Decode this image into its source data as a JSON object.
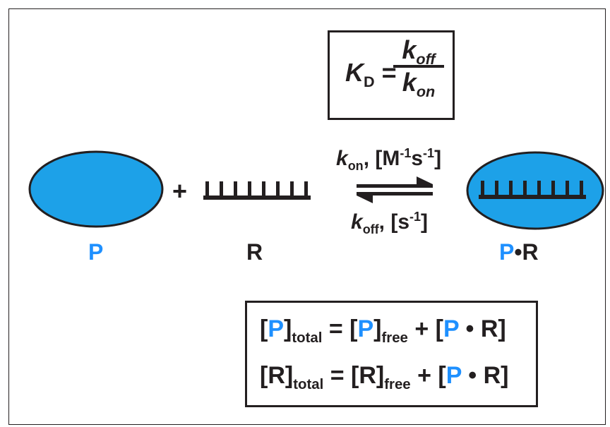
{
  "kd": {
    "k_symbol": "K",
    "k_sub": "D",
    "equals": "=",
    "num_k": "k",
    "num_sub": "off",
    "den_k": "k",
    "den_sub": "on"
  },
  "reaction": {
    "plus": "+",
    "protein_label": "P",
    "rna_label": "R",
    "complex_p": "P",
    "complex_dot": "•",
    "complex_r": "R",
    "forward_k": "k",
    "forward_sub": "on",
    "forward_units_pre": ", [M",
    "forward_sup1": "-1",
    "forward_units_mid": "s",
    "forward_sup2": "-1",
    "forward_units_post": "]",
    "reverse_k": "k",
    "reverse_sub": "off",
    "reverse_units_pre": ", [s",
    "reverse_sup": "-1",
    "reverse_units_post": "]"
  },
  "equations": {
    "line1": {
      "open": "[",
      "sym": "P",
      "close": "]",
      "sub_total": "total",
      "eq": " = [",
      "sym2": "P",
      "close2": "]",
      "sub_free": "free",
      "plus": " + [",
      "cp": "P",
      "dot": " • ",
      "cr": "R",
      "end": "]"
    },
    "line2": {
      "open": "[",
      "sym": "R",
      "close": "]",
      "sub_total": "total",
      "eq": " = [",
      "sym2": "R",
      "close2": "]",
      "sub_free": "free",
      "plus": " + [",
      "cp": "P",
      "dot": " • ",
      "cr": "R",
      "end": "]"
    }
  },
  "colors": {
    "protein_fill": "#1da1e8",
    "ink": "#231f20",
    "label_blue": "#1e90ff"
  }
}
